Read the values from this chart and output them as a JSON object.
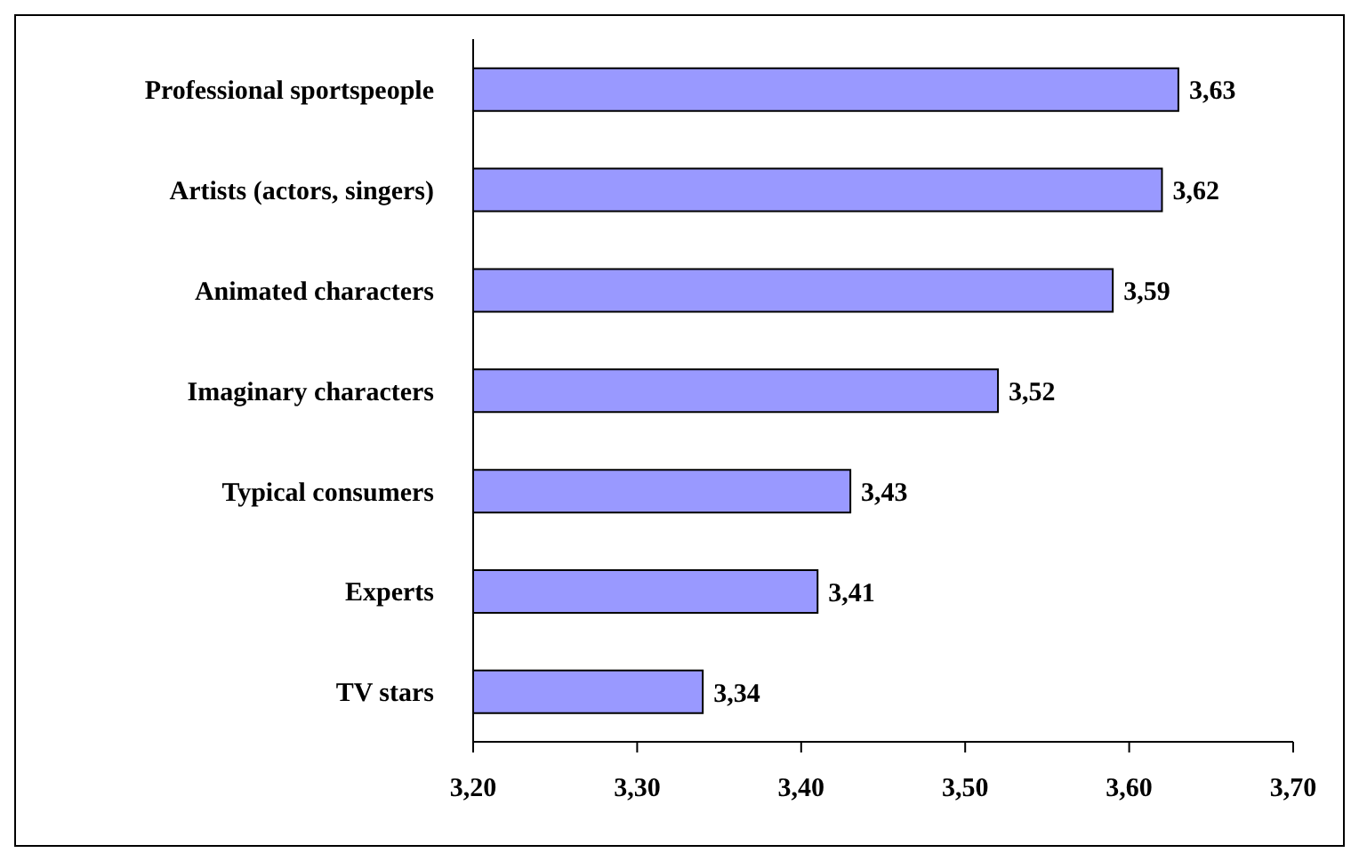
{
  "chart_data": {
    "type": "bar",
    "orientation": "horizontal",
    "categories": [
      "Professional sportspeople",
      "Artists (actors, singers)",
      "Animated characters",
      "Imaginary characters",
      "Typical consumers",
      "Experts",
      "TV stars"
    ],
    "values": [
      3.63,
      3.62,
      3.59,
      3.52,
      3.43,
      3.41,
      3.34
    ],
    "value_labels": [
      "3,63",
      "3,62",
      "3,59",
      "3,52",
      "3,43",
      "3,41",
      "3,34"
    ],
    "color": "#9999ff",
    "xlim": [
      3.2,
      3.7
    ],
    "xticks": [
      {
        "value": 3.2,
        "label": "3,20"
      },
      {
        "value": 3.3,
        "label": "3,30"
      },
      {
        "value": 3.4,
        "label": "3,40"
      },
      {
        "value": 3.5,
        "label": "3,50"
      },
      {
        "value": 3.6,
        "label": "3,60"
      },
      {
        "value": 3.7,
        "label": "3,70"
      }
    ],
    "grid": false,
    "legend": false
  }
}
